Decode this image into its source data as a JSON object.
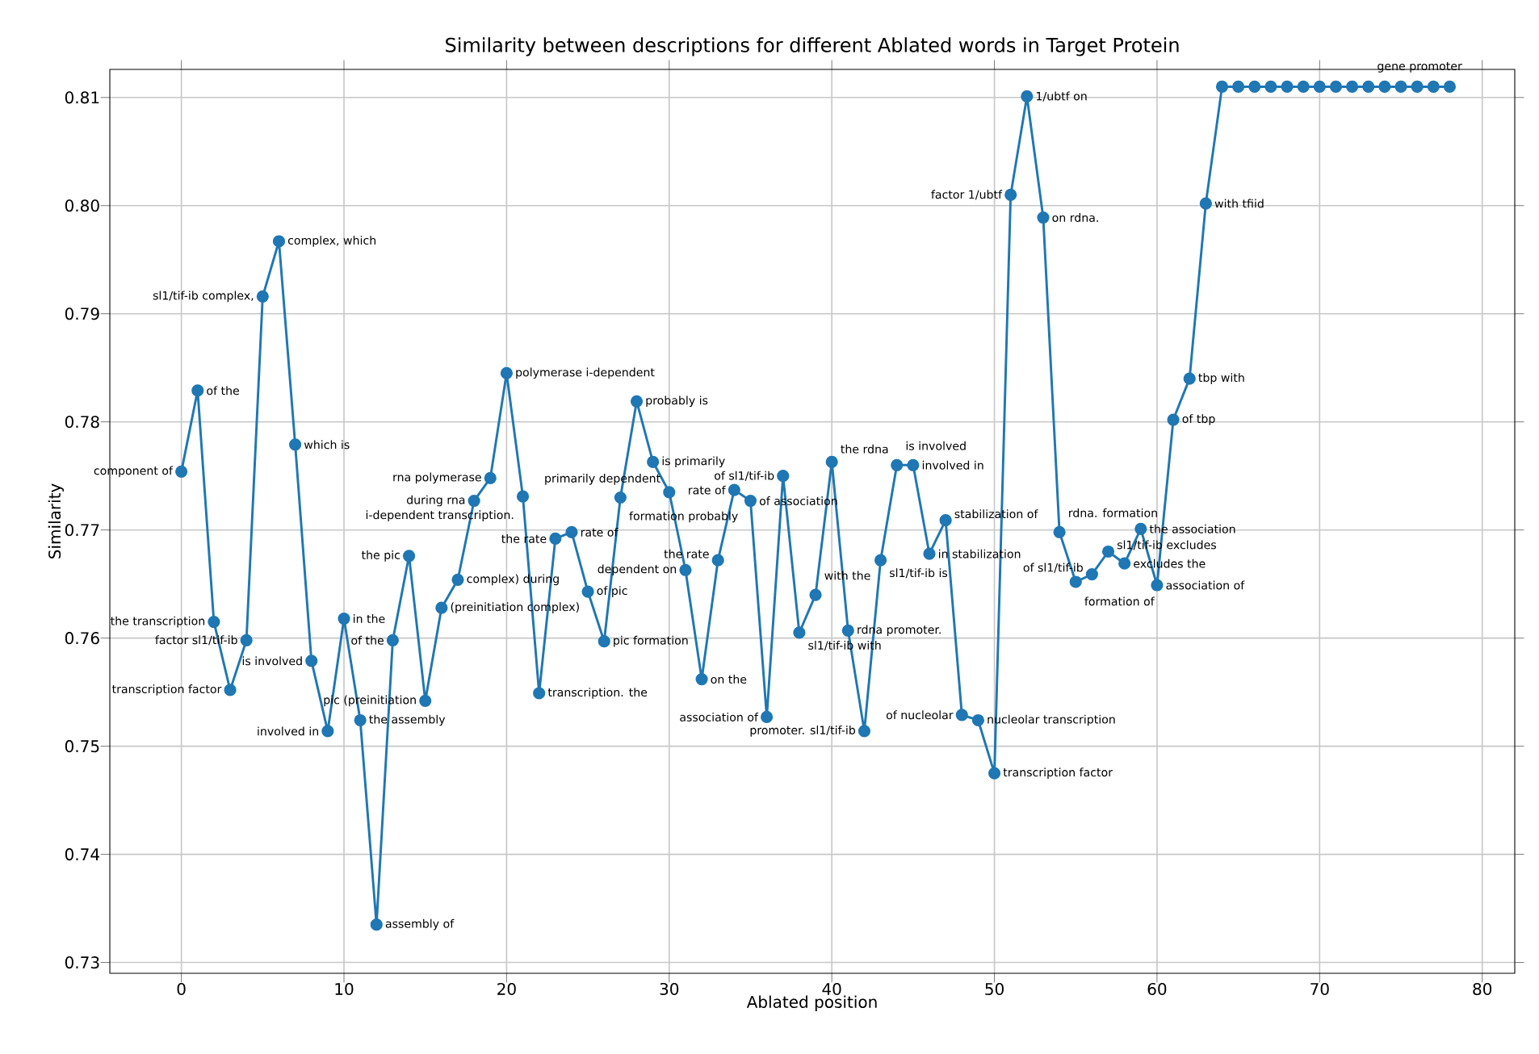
{
  "chart_data": {
    "type": "line",
    "title": "Similarity between descriptions for different Ablated words in Target Protein",
    "xlabel": "Ablated position",
    "ylabel": "Similarity",
    "x": [
      0,
      1,
      2,
      3,
      4,
      5,
      6,
      7,
      8,
      9,
      10,
      11,
      12,
      13,
      14,
      15,
      16,
      17,
      18,
      19,
      20,
      21,
      22,
      23,
      24,
      25,
      26,
      27,
      28,
      29,
      30,
      31,
      32,
      33,
      34,
      35,
      36,
      37,
      38,
      39,
      40,
      41,
      42,
      43,
      44,
      45,
      46,
      47,
      48,
      49,
      50,
      51,
      52,
      53,
      54,
      55,
      56,
      57,
      58,
      59,
      60,
      61,
      62,
      63,
      64,
      65,
      66,
      67,
      68,
      69,
      70,
      71,
      72,
      73,
      74,
      75,
      76,
      77,
      78
    ],
    "values": [
      0.7754,
      0.7829,
      0.7615,
      0.7552,
      0.7598,
      0.7916,
      0.7967,
      0.7779,
      0.7579,
      0.7514,
      0.7618,
      0.7524,
      0.7335,
      0.7598,
      0.7676,
      0.7542,
      0.7628,
      0.7654,
      0.7727,
      0.7748,
      0.7845,
      0.7731,
      0.7549,
      0.7692,
      0.7698,
      0.7643,
      0.7597,
      0.773,
      0.7819,
      0.7763,
      0.7735,
      0.7663,
      0.7562,
      0.7672,
      0.7737,
      0.7727,
      0.7527,
      0.775,
      0.7605,
      0.764,
      0.7763,
      0.7607,
      0.7514,
      0.7672,
      0.776,
      0.776,
      0.7678,
      0.7709,
      0.7529,
      0.7524,
      0.7475,
      0.801,
      0.8101,
      0.7989,
      0.7698,
      0.7652,
      0.7659,
      0.768,
      0.7669,
      0.7701,
      0.7649,
      0.7802,
      0.784,
      0.8002,
      0.811,
      0.811,
      0.811,
      0.811,
      0.811,
      0.811,
      0.811,
      0.811,
      0.811,
      0.811,
      0.811,
      0.811,
      0.811,
      0.811,
      0.811
    ],
    "color": "#1f77b4",
    "marker": "circle",
    "grid": true,
    "xlim": [
      -4.4,
      82
    ],
    "ylim": [
      0.729,
      0.8126
    ],
    "xticks": [
      0,
      10,
      20,
      30,
      40,
      50,
      60,
      70,
      80
    ],
    "yticks": [
      0.73,
      0.74,
      0.75,
      0.76,
      0.77,
      0.78,
      0.79,
      {
        "value": 0.8,
        "label": "0.80"
      },
      0.81
    ],
    "annotations": [
      {
        "text": "component of",
        "x": 0,
        "y": 0.7754
      },
      {
        "text": "of the",
        "x": 1,
        "y": 0.7829
      },
      {
        "text": "the transcription",
        "x": 2,
        "y": 0.7615
      },
      {
        "text": "transcription factor",
        "x": 3,
        "y": 0.7552
      },
      {
        "text": "factor sl1/tif-ib",
        "x": 4,
        "y": 0.7598
      },
      {
        "text": "sl1/tif-ib complex,",
        "x": 5,
        "y": 0.7916
      },
      {
        "text": "complex, which",
        "x": 6,
        "y": 0.7967
      },
      {
        "text": "which is",
        "x": 7,
        "y": 0.7779
      },
      {
        "text": "is involved",
        "x": 8,
        "y": 0.7579
      },
      {
        "text": "involved in",
        "x": 9,
        "y": 0.7514
      },
      {
        "text": "in the",
        "x": 10,
        "y": 0.7618
      },
      {
        "text": "the assembly",
        "x": 11,
        "y": 0.7524
      },
      {
        "text": "assembly of",
        "x": 12,
        "y": 0.7335
      },
      {
        "text": "of the",
        "x": 13,
        "y": 0.7598
      },
      {
        "text": "the pic",
        "x": 14,
        "y": 0.7676
      },
      {
        "text": "pic (preinitiation",
        "x": 15,
        "y": 0.7542
      },
      {
        "text": "(preinitiation complex)",
        "x": 16,
        "y": 0.7628
      },
      {
        "text": "complex) during",
        "x": 17,
        "y": 0.7654
      },
      {
        "text": "during rna",
        "x": 18,
        "y": 0.7727
      },
      {
        "text": "rna polymerase",
        "x": 19,
        "y": 0.7748
      },
      {
        "text": "polymerase i-dependent",
        "x": 20,
        "y": 0.7845
      },
      {
        "text": "i-dependent transcription.",
        "x": 21,
        "y": 0.7731
      },
      {
        "text": "transcription. the",
        "x": 22,
        "y": 0.7549
      },
      {
        "text": "the rate",
        "x": 23,
        "y": 0.7692
      },
      {
        "text": "rate of",
        "x": 24,
        "y": 0.7698
      },
      {
        "text": "of pic",
        "x": 25,
        "y": 0.7643
      },
      {
        "text": "pic formation",
        "x": 26,
        "y": 0.7597
      },
      {
        "text": "formation probably",
        "x": 27,
        "y": 0.773
      },
      {
        "text": "probably is",
        "x": 28,
        "y": 0.7819
      },
      {
        "text": "is primarily",
        "x": 29,
        "y": 0.7763
      },
      {
        "text": "primarily dependent",
        "x": 30,
        "y": 0.7735
      },
      {
        "text": "dependent on",
        "x": 31,
        "y": 0.7663
      },
      {
        "text": "on the",
        "x": 32,
        "y": 0.7562
      },
      {
        "text": "the rate",
        "x": 33,
        "y": 0.7672
      },
      {
        "text": "rate of",
        "x": 34,
        "y": 0.7737
      },
      {
        "text": "of association",
        "x": 35,
        "y": 0.7727
      },
      {
        "text": "association of",
        "x": 36,
        "y": 0.7527
      },
      {
        "text": "of sl1/tif-ib",
        "x": 37,
        "y": 0.775
      },
      {
        "text": "sl1/tif-ib with",
        "x": 38,
        "y": 0.7605
      },
      {
        "text": "with the",
        "x": 39,
        "y": 0.764
      },
      {
        "text": "the rdna",
        "x": 40,
        "y": 0.7763
      },
      {
        "text": "rdna promoter.",
        "x": 41,
        "y": 0.7607
      },
      {
        "text": "promoter. sl1/tif-ib",
        "x": 42,
        "y": 0.7514
      },
      {
        "text": "sl1/tif-ib is",
        "x": 43,
        "y": 0.7672
      },
      {
        "text": "is involved",
        "x": 44,
        "y": 0.776
      },
      {
        "text": "involved in",
        "x": 45,
        "y": 0.776
      },
      {
        "text": "in stabilization",
        "x": 46,
        "y": 0.7678
      },
      {
        "text": "stabilization of",
        "x": 47,
        "y": 0.7709
      },
      {
        "text": "of nucleolar",
        "x": 48,
        "y": 0.7529
      },
      {
        "text": "nucleolar transcription",
        "x": 49,
        "y": 0.7524
      },
      {
        "text": "transcription factor",
        "x": 50,
        "y": 0.7475
      },
      {
        "text": "factor 1/ubtf",
        "x": 51,
        "y": 0.801
      },
      {
        "text": "1/ubtf on",
        "x": 52,
        "y": 0.8101
      },
      {
        "text": "on rdna.",
        "x": 53,
        "y": 0.7989
      },
      {
        "text": "rdna. formation",
        "x": 54,
        "y": 0.7698
      },
      {
        "text": "formation of",
        "x": 55,
        "y": 0.7652
      },
      {
        "text": "of sl1/tif-ib",
        "x": 56,
        "y": 0.7659
      },
      {
        "text": "sl1/tif-ib excludes",
        "x": 57,
        "y": 0.768
      },
      {
        "text": "excludes the",
        "x": 58,
        "y": 0.7669
      },
      {
        "text": "the association",
        "x": 59,
        "y": 0.7701
      },
      {
        "text": "association of",
        "x": 60,
        "y": 0.7649
      },
      {
        "text": "of tbp",
        "x": 61,
        "y": 0.7802
      },
      {
        "text": "tbp with",
        "x": 62,
        "y": 0.784
      },
      {
        "text": "with tfiid",
        "x": 63,
        "y": 0.8002
      },
      {
        "text": "gene promoter",
        "x": 73,
        "y": 0.811
      }
    ]
  }
}
